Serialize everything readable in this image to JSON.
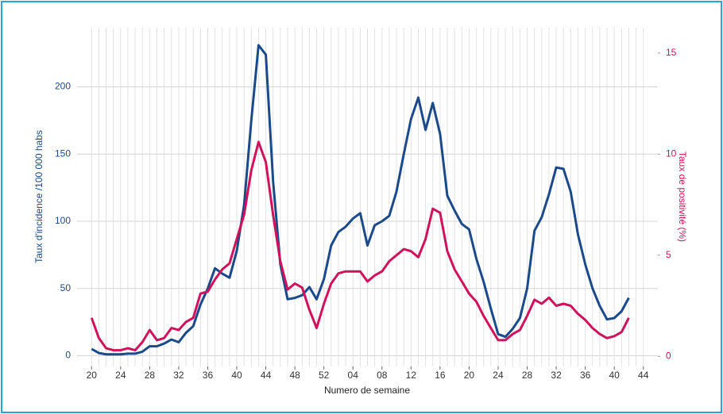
{
  "chart_data": {
    "type": "line",
    "x_label": "Numero de semaine",
    "y_label": "Taux d'incidence /100 000 habs",
    "y2_label": "Taux de positivité (%)",
    "categories": [
      "20",
      null,
      null,
      null,
      "24",
      null,
      null,
      null,
      "28",
      null,
      null,
      null,
      "32",
      null,
      null,
      null,
      "36",
      null,
      null,
      null,
      "40",
      null,
      null,
      null,
      "44",
      null,
      null,
      null,
      "48",
      null,
      null,
      null,
      "52",
      null,
      null,
      null,
      "04",
      null,
      null,
      null,
      "08",
      null,
      null,
      null,
      "12",
      null,
      null,
      null,
      "16",
      null,
      null,
      null,
      "20",
      null,
      null,
      null,
      "24",
      null,
      null,
      null,
      "28",
      null,
      null,
      null,
      "32",
      null,
      null,
      null,
      "36",
      null,
      null,
      null,
      "40",
      null,
      null,
      null,
      "44"
    ],
    "series": [
      {
        "name": "Taux d'incidence",
        "color": "#1a4a8a",
        "axis": "y",
        "values": [
          5,
          2,
          1,
          1,
          1,
          1.5,
          1.5,
          3,
          7,
          7,
          9,
          12,
          10,
          17,
          22,
          38,
          50,
          65,
          61,
          58,
          78,
          112,
          175,
          231,
          224,
          130,
          68,
          42,
          43,
          45,
          51,
          42,
          57,
          82,
          92,
          96,
          102,
          106,
          82,
          97,
          100,
          104,
          122,
          150,
          176,
          192,
          168,
          188,
          165,
          119,
          108,
          98,
          94,
          72,
          55,
          35,
          16,
          14,
          20,
          28,
          50,
          93,
          103,
          120,
          140,
          139,
          122,
          90,
          68,
          50,
          37,
          27,
          28,
          33,
          43,
          null,
          null
        ]
      },
      {
        "name": "Taux de positivité",
        "color": "#d0125c",
        "axis": "y2",
        "values": [
          1.9,
          0.9,
          0.4,
          0.3,
          0.3,
          0.4,
          0.3,
          0.7,
          1.3,
          0.8,
          0.9,
          1.4,
          1.3,
          1.7,
          1.9,
          3.1,
          3.2,
          3.8,
          4.3,
          4.6,
          5.8,
          7,
          9.2,
          10.6,
          9.6,
          7,
          4.7,
          3.3,
          3.6,
          3.4,
          2.3,
          1.4,
          2.6,
          3.6,
          4.1,
          4.2,
          4.2,
          4.2,
          3.7,
          4,
          4.2,
          4.7,
          5,
          5.3,
          5.2,
          4.9,
          5.8,
          7.3,
          7.1,
          5.2,
          4.3,
          3.7,
          3.1,
          2.7,
          2,
          1.4,
          0.8,
          0.8,
          1.1,
          1.3,
          2,
          2.8,
          2.6,
          2.9,
          2.5,
          2.6,
          2.5,
          2.1,
          1.8,
          1.4,
          1.1,
          0.9,
          1,
          1.2,
          1.9,
          null,
          null
        ]
      }
    ],
    "ylim": [
      -8,
      244
    ],
    "yticks": [
      0,
      50,
      100,
      150,
      200
    ],
    "y2lim": [
      -0.5,
      16.25
    ],
    "y2ticks": [
      0,
      5,
      10,
      15
    ],
    "grid": true
  }
}
